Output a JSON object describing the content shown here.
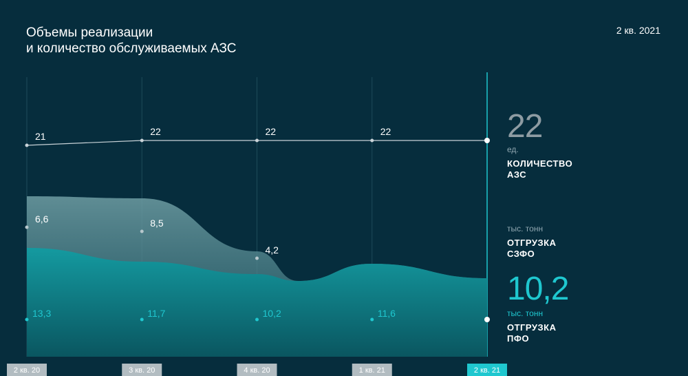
{
  "title_line1": "Объемы реализации",
  "title_line2": "и количество обслуживаемых АЗС",
  "period": "2 кв. 2021",
  "colors": {
    "background": "#062d3d",
    "stations_line": "#c9d3d8",
    "szfo_area": "#5a8c93",
    "pfo_area": "#118f95",
    "accent": "#1fc7cf",
    "tick_box": "#b2bcc1"
  },
  "panel": {
    "stations": {
      "value": "22",
      "unit": "ед.",
      "label_line1": "КОЛИЧЕСТВО",
      "label_line2": "АЗС"
    },
    "szfo": {
      "unit": "тыс. тонн",
      "label_line1": "ОТГРУЗКА",
      "label_line2": "СЗФО"
    },
    "pfo": {
      "value": "10,2",
      "unit": "тыс. тонн",
      "label_line1": "ОТГРУЗКА",
      "label_line2": "ПФО"
    }
  },
  "chart_data": {
    "type": "area",
    "categories": [
      "2 кв. 20",
      "3 кв. 20",
      "4 кв. 20",
      "1 кв. 21",
      "2 кв. 21"
    ],
    "series": [
      {
        "name": "КОЛИЧЕСТВО АЗС",
        "type": "line",
        "values": [
          21,
          22,
          22,
          22,
          22
        ],
        "labels": [
          "21",
          "22",
          "22",
          "22",
          ""
        ]
      },
      {
        "name": "ОТГРУЗКА СЗФО",
        "type": "area",
        "values": [
          6.6,
          8.5,
          4.2,
          null,
          null
        ],
        "labels": [
          "6,6",
          "8,5",
          "4,2",
          "",
          ""
        ]
      },
      {
        "name": "ОТГРУЗКА ПФО",
        "type": "area",
        "values": [
          13.3,
          11.7,
          10.2,
          11.6,
          10.2
        ],
        "labels": [
          "13,3",
          "11,7",
          "10,2",
          "11,6",
          ""
        ]
      }
    ],
    "highlighted_category": "2 кв. 21",
    "grid": true
  }
}
